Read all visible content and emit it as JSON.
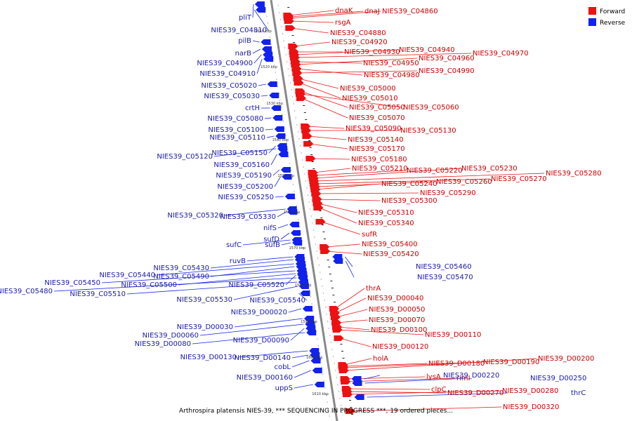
{
  "caption": "Arthrospira platensis NIES-39, *** SEQUENCING IN PROGRESS ***, 19 ordered pieces...",
  "legend": [
    {
      "label": "Forward",
      "color": "#ee1111"
    },
    {
      "label": "Reverse",
      "color": "#1122ee"
    }
  ],
  "colors": {
    "forward": "#ee1111",
    "reverse": "#1122ee",
    "forward_text": "#cc0000",
    "reverse_text": "#1a1aaa",
    "backbone": "#888888"
  },
  "scale_ticks": [
    "1510 kbp",
    "1520 kbp",
    "1530 kbp",
    "1540 kbp",
    "1550 kbp",
    "1560 kbp",
    "1570 kbp",
    "1580 kbp",
    "1590 kbp",
    "1600 kbp",
    "1610 kbp"
  ],
  "forward_genes": [
    "dnaK",
    "dnaJ",
    "NIES39_C04860",
    "rsgA",
    "NIES39_C04880",
    "NIES39_C04920",
    "NIES39_C04930",
    "NIES39_C04940",
    "NIES39_C04970",
    "NIES39_C04950",
    "NIES39_C04960",
    "NIES39_C04980",
    "NIES39_C04990",
    "NIES39_C05000",
    "NIES39_C05010",
    "NIES39_C05050",
    "NIES39_C05060",
    "NIES39_C05070",
    "NIES39_C05090",
    "NIES39_C05130",
    "NIES39_C05140",
    "NIES39_C05170",
    "NIES39_C05180",
    "NIES39_C05210",
    "NIES39_C05220",
    "NIES39_C05230",
    "NIES39_C05280",
    "NIES39_C05270",
    "NIES39_C05260",
    "NIES39_C05240",
    "NIES39_C05290",
    "NIES39_C05300",
    "NIES39_C05310",
    "NIES39_C05340",
    "sufR",
    "NIES39_C05400",
    "NIES39_C05420",
    "thrA",
    "NIES39_D00040",
    "NIES39_D00050",
    "NIES39_D00070",
    "NIES39_D00100",
    "NIES39_D00110",
    "NIES39_D00120",
    "holA",
    "NIES39_D00180",
    "NIES39_D00190",
    "NIES39_D00200",
    "lysA",
    "rimI",
    "clpC",
    "NIES39_D00270",
    "NIES39_D00280",
    "NIES39_D00320"
  ],
  "reverse_genes": [
    "pliT",
    "NIES39_C04810",
    "pilB",
    "narB",
    "NIES39_C04900",
    "NIES39_C04910",
    "NIES39_C05020",
    "NIES39_C05030",
    "crtH",
    "NIES39_C05080",
    "NIES39_C05100",
    "NIES39_C05110",
    "NIES39_C05120",
    "NIES39_C05150",
    "NIES39_C05160",
    "NIES39_C05190",
    "NIES39_C05200",
    "NIES39_C05250",
    "NIES39_C05320",
    "NIES39_C05330",
    "nifS",
    "sufD",
    "sufC",
    "sufB",
    "ruvB",
    "NIES39_C05430",
    "NIES39_C05440",
    "NIES39_C05490",
    "NIES39_C05450",
    "NIES39_C05500",
    "NIES39_C05480",
    "NIES39_C05510",
    "NIES39_C05520",
    "NIES39_C05530",
    "NIES39_C05540",
    "NIES39_D00020",
    "NIES39_D00030",
    "NIES39_D00060",
    "NIES39_D00090",
    "NIES39_D00080",
    "NIES39_D00130",
    "NIES39_D00140",
    "cobL",
    "NIES39_D00160",
    "uppS",
    "NIES39_C05460",
    "NIES39_C05470",
    "NIES39_D00220",
    "NIES39_D00250",
    "thrC"
  ]
}
